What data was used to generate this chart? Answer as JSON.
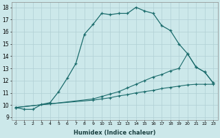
{
  "bg_color": "#cce8ea",
  "grid_color": "#b0cfd4",
  "line_color": "#1a6b6b",
  "xlabel": "Humidex (Indice chaleur)",
  "xlim": [
    -0.5,
    23.5
  ],
  "ylim": [
    8.8,
    18.4
  ],
  "xticks": [
    0,
    1,
    2,
    3,
    4,
    5,
    6,
    7,
    8,
    9,
    10,
    11,
    12,
    13,
    14,
    15,
    16,
    17,
    18,
    19,
    20,
    21,
    22,
    23
  ],
  "yticks": [
    9,
    10,
    11,
    12,
    13,
    14,
    15,
    16,
    17,
    18
  ],
  "line1_x": [
    0,
    1,
    2,
    3,
    4,
    5,
    6,
    7,
    8,
    9,
    10,
    11,
    12,
    13,
    14,
    15,
    16,
    17,
    18,
    19,
    20,
    21,
    22,
    23
  ],
  "line1_y": [
    9.8,
    9.65,
    9.65,
    10.05,
    10.2,
    11.1,
    12.2,
    13.4,
    15.8,
    16.6,
    17.5,
    17.4,
    17.5,
    17.5,
    18.0,
    17.7,
    17.5,
    16.5,
    16.1,
    15.0,
    14.2,
    13.1,
    12.7,
    11.8
  ],
  "line2_x": [
    0,
    4,
    9,
    10,
    11,
    12,
    13,
    14,
    15,
    16,
    17,
    18,
    19,
    20,
    21,
    22,
    23
  ],
  "line2_y": [
    9.8,
    10.1,
    10.5,
    10.7,
    10.9,
    11.1,
    11.4,
    11.7,
    12.0,
    12.3,
    12.5,
    12.8,
    13.0,
    14.2,
    13.1,
    12.7,
    11.8
  ],
  "line3_x": [
    0,
    4,
    9,
    10,
    11,
    12,
    13,
    14,
    15,
    16,
    17,
    18,
    19,
    20,
    21,
    22,
    23
  ],
  "line3_y": [
    9.8,
    10.1,
    10.4,
    10.5,
    10.6,
    10.75,
    10.85,
    11.0,
    11.1,
    11.2,
    11.35,
    11.45,
    11.55,
    11.65,
    11.7,
    11.7,
    11.7
  ]
}
